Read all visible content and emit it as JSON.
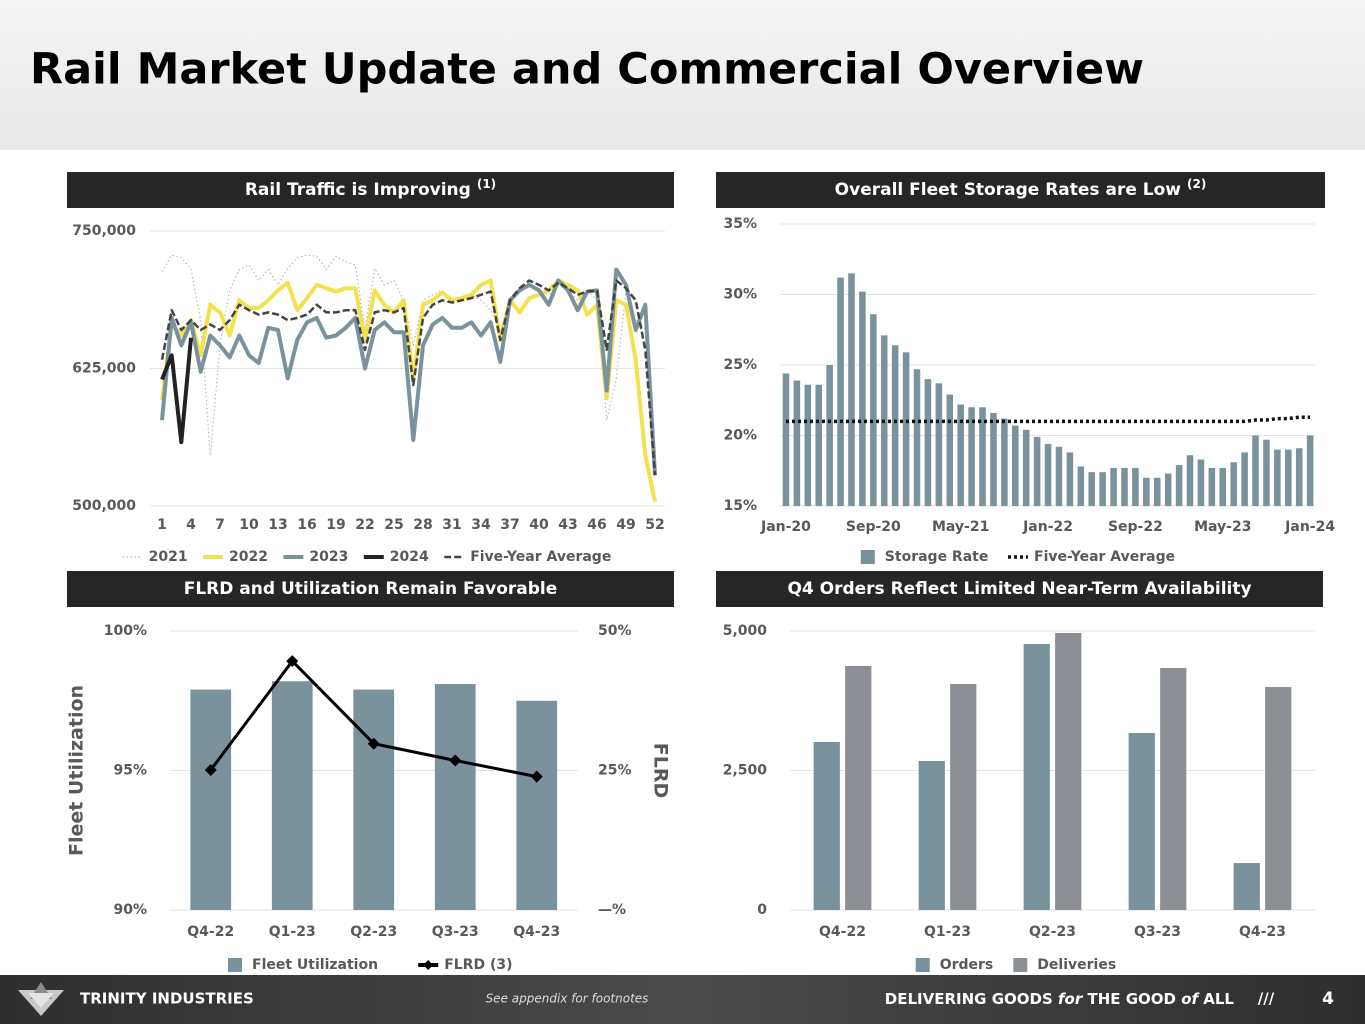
{
  "header": {
    "title": "Rail Market Update and Commercial Overview"
  },
  "footer": {
    "company": "TRINITY INDUSTRIES",
    "note": "See appendix for footnotes",
    "tagline": [
      "DELIVERING GOODS ",
      "for",
      " THE GOOD ",
      "of",
      " ALL"
    ],
    "separator": "///",
    "page": "4"
  },
  "chart_data": [
    {
      "type": "line",
      "title": "Rail Traffic is Improving",
      "title_note": "(1)",
      "legend": "bottom",
      "grid": true,
      "x": [
        1,
        2,
        3,
        4,
        5,
        6,
        7,
        8,
        9,
        10,
        11,
        12,
        13,
        14,
        15,
        16,
        17,
        18,
        19,
        20,
        21,
        22,
        23,
        24,
        25,
        26,
        27,
        28,
        29,
        30,
        31,
        32,
        33,
        34,
        35,
        36,
        37,
        38,
        39,
        40,
        41,
        42,
        43,
        44,
        45,
        46,
        47,
        48,
        49,
        50,
        51,
        52
      ],
      "xlim": [
        1,
        52
      ],
      "xticks": [
        1,
        4,
        7,
        10,
        13,
        16,
        19,
        22,
        25,
        28,
        31,
        34,
        37,
        40,
        43,
        46,
        49,
        52
      ],
      "ylim": [
        500000,
        750000
      ],
      "yticks": [
        {
          "value": 500000,
          "label": "500,000"
        },
        {
          "value": 625000,
          "label": "625,000"
        },
        {
          "value": 750000,
          "label": "750,000"
        }
      ],
      "series": [
        {
          "name": "2021",
          "color": "#b8b8b8",
          "dash": "dotted",
          "values": [
            713000,
            728000,
            726000,
            715000,
            669000,
            546000,
            646000,
            696000,
            715000,
            719000,
            705000,
            715000,
            701000,
            716000,
            726000,
            728000,
            727000,
            715000,
            727000,
            722000,
            719000,
            660000,
            716000,
            701000,
            705000,
            687000,
            646000,
            687000,
            692000,
            696000,
            687000,
            689000,
            692000,
            687000,
            678000,
            660000,
            687000,
            696000,
            701000,
            695000,
            692000,
            701000,
            696000,
            687000,
            696000,
            687000,
            578000,
            615000,
            696000,
            669000,
            660000,
            533000
          ]
        },
        {
          "name": "2022",
          "color": "#f4e14f",
          "dash": "solid",
          "values": [
            596000,
            665000,
            655000,
            669000,
            637000,
            683000,
            676000,
            655000,
            687000,
            680000,
            680000,
            687000,
            696000,
            703000,
            678000,
            689000,
            701000,
            698000,
            695000,
            698000,
            698000,
            651000,
            696000,
            683000,
            676000,
            687000,
            615000,
            683000,
            687000,
            694000,
            687000,
            689000,
            692000,
            701000,
            705000,
            651000,
            687000,
            676000,
            689000,
            692000,
            696000,
            705000,
            701000,
            696000,
            674000,
            683000,
            598000,
            687000,
            683000,
            633000,
            546000,
            504000
          ]
        },
        {
          "name": "2023",
          "color": "#7a929c",
          "dash": "solid",
          "values": [
            578000,
            671000,
            646000,
            667000,
            622000,
            655000,
            646000,
            635000,
            655000,
            637000,
            630000,
            662000,
            660000,
            616000,
            651000,
            667000,
            671000,
            653000,
            655000,
            662000,
            671000,
            625000,
            660000,
            667000,
            658000,
            658000,
            560000,
            646000,
            665000,
            671000,
            662000,
            662000,
            667000,
            655000,
            667000,
            631000,
            687000,
            696000,
            701000,
            696000,
            683000,
            705000,
            696000,
            678000,
            695000,
            696000,
            605000,
            715000,
            701000,
            660000,
            683000,
            528000
          ]
        },
        {
          "name": "2024",
          "color": "#222222",
          "dash": "solid",
          "values": [
            615000,
            637000,
            558000,
            653000,
            null,
            null,
            null,
            null,
            null,
            null,
            null,
            null,
            null,
            null,
            null,
            null,
            null,
            null,
            null,
            null,
            null,
            null,
            null,
            null,
            null,
            null,
            null,
            null,
            null,
            null,
            null,
            null,
            null,
            null,
            null,
            null,
            null,
            null,
            null,
            null,
            null,
            null,
            null,
            null,
            null,
            null,
            null,
            null,
            null,
            null,
            null,
            null
          ]
        },
        {
          "name": "Five-Year Average",
          "color": "#444444",
          "dash": "dashed",
          "values": [
            633000,
            678000,
            660000,
            669000,
            660000,
            665000,
            660000,
            669000,
            683000,
            678000,
            674000,
            676000,
            674000,
            669000,
            671000,
            674000,
            683000,
            676000,
            676000,
            678000,
            678000,
            642000,
            676000,
            678000,
            676000,
            680000,
            610000,
            671000,
            683000,
            687000,
            685000,
            687000,
            689000,
            692000,
            695000,
            651000,
            687000,
            698000,
            705000,
            701000,
            696000,
            703000,
            698000,
            692000,
            695000,
            696000,
            642000,
            705000,
            698000,
            687000,
            642000,
            528000
          ]
        }
      ]
    },
    {
      "type": "bar",
      "title": "Overall Fleet Storage Rates are Low",
      "title_note": "(2)",
      "legend": "bottom",
      "grid": true,
      "categories": [
        "Jan-20",
        null,
        null,
        null,
        null,
        null,
        null,
        null,
        "Sep-20",
        null,
        null,
        null,
        null,
        null,
        null,
        null,
        "May-21",
        null,
        null,
        null,
        null,
        null,
        null,
        null,
        "Jan-22",
        null,
        null,
        null,
        null,
        null,
        null,
        null,
        "Sep-22",
        null,
        null,
        null,
        null,
        null,
        null,
        null,
        "May-23",
        null,
        null,
        null,
        null,
        null,
        null,
        null,
        "Jan-24"
      ],
      "ylim": [
        15,
        35
      ],
      "yticks": [
        {
          "value": 15,
          "label": "15%"
        },
        {
          "value": 20,
          "label": "20%"
        },
        {
          "value": 25,
          "label": "25%"
        },
        {
          "value": 30,
          "label": "30%"
        },
        {
          "value": 35,
          "label": "35%"
        }
      ],
      "series": [
        {
          "name": "Storage Rate",
          "color": "#7a929c",
          "style": "bar",
          "values": [
            24.4,
            23.9,
            23.6,
            23.6,
            25.0,
            31.2,
            31.5,
            30.2,
            28.6,
            27.1,
            26.4,
            25.9,
            24.7,
            24.0,
            23.7,
            22.9,
            22.2,
            22.0,
            22.0,
            21.6,
            21.2,
            20.7,
            20.4,
            19.9,
            19.4,
            19.2,
            18.8,
            17.8,
            17.4,
            17.4,
            17.7,
            17.7,
            17.7,
            17.0,
            17.0,
            17.3,
            17.9,
            18.6,
            18.3,
            17.7,
            17.7,
            18.1,
            18.8,
            20.0,
            19.7,
            19.0,
            19.0,
            19.1,
            20.0
          ]
        },
        {
          "name": "Five-Year Average",
          "color": "#111111",
          "style": "line",
          "dash": "dotted",
          "values": [
            21,
            21,
            21,
            21,
            21,
            21,
            21,
            21,
            21,
            21,
            21,
            21,
            21,
            21,
            21,
            21,
            21,
            21,
            21,
            21,
            21,
            21,
            21,
            21,
            21,
            21,
            21,
            21,
            21,
            21,
            21,
            21,
            21,
            21,
            21,
            21,
            21,
            21,
            21,
            21,
            21,
            21,
            21,
            21.1,
            21.1,
            21.2,
            21.2,
            21.3,
            21.3
          ]
        }
      ]
    },
    {
      "type": "bar",
      "title": "FLRD and Utilization Remain Favorable",
      "legend": "bottom",
      "grid": true,
      "ylabel": "Fleet Utilization",
      "y2label": "FLRD",
      "categories": [
        "Q4-22",
        "Q1-23",
        "Q2-23",
        "Q3-23",
        "Q4-23"
      ],
      "ylim": [
        90,
        100
      ],
      "yticks": [
        {
          "value": 90,
          "label": "90%"
        },
        {
          "value": 95,
          "label": "95%"
        },
        {
          "value": 100,
          "label": "100%"
        }
      ],
      "y2lim": [
        0,
        50
      ],
      "y2ticks": [
        {
          "value": 0,
          "label": "—%"
        },
        {
          "value": 25,
          "label": "25%"
        },
        {
          "value": 50,
          "label": "50%"
        }
      ],
      "series": [
        {
          "name": "Fleet Utilization",
          "color": "#7a929c",
          "style": "bar",
          "values": [
            97.9,
            98.2,
            97.9,
            98.1,
            97.5
          ]
        },
        {
          "name": "FLRD (3)",
          "color": "#000000",
          "style": "line",
          "dash": "solid",
          "marker": "diamond",
          "axis": "y2",
          "values": [
            25.1,
            44.6,
            29.8,
            26.8,
            23.9
          ]
        }
      ]
    },
    {
      "type": "bar",
      "title": "Q4 Orders Reflect Limited Near-Term Availability",
      "legend": "bottom",
      "grid": true,
      "categories": [
        "Q4-22",
        "Q1-23",
        "Q2-23",
        "Q3-23",
        "Q4-23"
      ],
      "ylim": [
        0,
        5000
      ],
      "yticks": [
        0,
        {
          "value": 2500,
          "label": "2,500"
        },
        {
          "value": 5000,
          "label": "5,000"
        }
      ],
      "series": [
        {
          "name": "Orders",
          "color": "#7a929c",
          "style": "bar",
          "values": [
            3011,
            2670,
            4767,
            3172,
            842
          ]
        },
        {
          "name": "Deliveries",
          "color": "#8c8f93",
          "style": "bar",
          "values": [
            4373,
            4050,
            4964,
            4337,
            3996
          ]
        }
      ]
    }
  ]
}
